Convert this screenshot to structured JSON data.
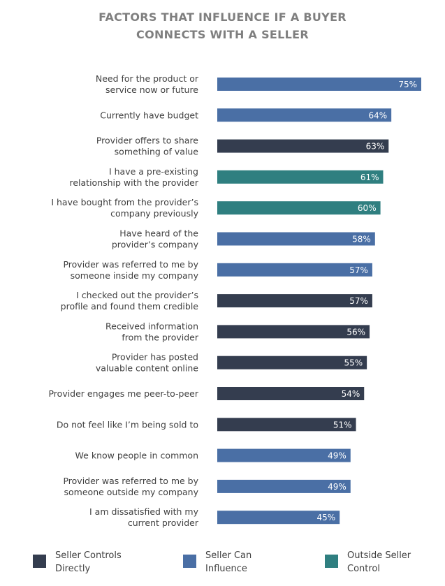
{
  "colors": {
    "seller_controls": "#343d4f",
    "seller_can_influence": "#4a6fa5",
    "outside_seller": "#2f7f80"
  },
  "chart_data": {
    "type": "bar",
    "orientation": "horizontal",
    "title": [
      "FACTORS THAT INFLUENCE IF A BUYER",
      "CONNECTS WITH A SELLER"
    ],
    "xlim": [
      0,
      75
    ],
    "grid": false,
    "legend_position": "bottom",
    "categories": [
      [
        "Need for the product or",
        "service now or future"
      ],
      [
        "Currently have budget"
      ],
      [
        "Provider offers to share",
        "something of value"
      ],
      [
        "I have a pre-existing",
        "relationship with the provider"
      ],
      [
        "I have bought from the provider’s",
        "company previously"
      ],
      [
        "Have heard of the",
        "provider’s company"
      ],
      [
        "Provider was referred to me by",
        "someone inside my company"
      ],
      [
        "I checked out the provider’s",
        "profile and found them credible"
      ],
      [
        "Received information",
        "from the provider"
      ],
      [
        "Provider has posted",
        "valuable content online"
      ],
      [
        "Provider engages me peer-to-peer"
      ],
      [
        "Do not feel like I’m being sold to"
      ],
      [
        "We know people in common"
      ],
      [
        "Provider was referred to me by",
        "someone outside my company"
      ],
      [
        "I am dissatisfied with my",
        "current provider"
      ]
    ],
    "values": [
      75,
      64,
      63,
      61,
      60,
      58,
      57,
      57,
      56,
      55,
      54,
      51,
      49,
      49,
      45
    ],
    "value_labels": [
      "75%",
      "64%",
      "63%",
      "61%",
      "60%",
      "58%",
      "57%",
      "57%",
      "56%",
      "55%",
      "54%",
      "51%",
      "49%",
      "49%",
      "45%"
    ],
    "groups": [
      "seller_can_influence",
      "seller_can_influence",
      "seller_controls",
      "outside_seller",
      "outside_seller",
      "seller_can_influence",
      "seller_can_influence",
      "seller_controls",
      "seller_controls",
      "seller_controls",
      "seller_controls",
      "seller_controls",
      "seller_can_influence",
      "seller_can_influence",
      "seller_can_influence"
    ],
    "legend": [
      {
        "key": "seller_controls",
        "lines": [
          "Seller Controls",
          "Directly"
        ]
      },
      {
        "key": "seller_can_influence",
        "lines": [
          "Seller Can",
          "Influence"
        ]
      },
      {
        "key": "outside_seller",
        "lines": [
          "Outside Seller",
          "Control"
        ]
      }
    ]
  }
}
